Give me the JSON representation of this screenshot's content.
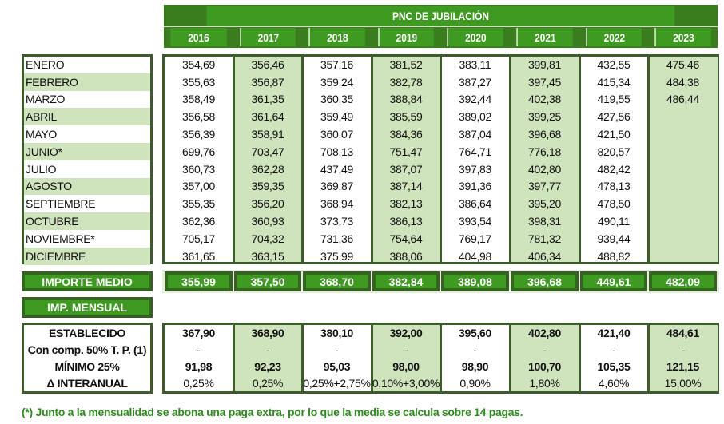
{
  "title": "PNC DE JUBILACIÓN",
  "years": [
    "2016",
    "2017",
    "2018",
    "2019",
    "2020",
    "2021",
    "2022",
    "2023"
  ],
  "months": [
    {
      "label": "ENERO",
      "values": [
        "354,69",
        "356,46",
        "357,16",
        "381,52",
        "383,11",
        "399,81",
        "432,55",
        "475,46"
      ]
    },
    {
      "label": "FEBRERO",
      "values": [
        "355,63",
        "356,87",
        "359,24",
        "382,78",
        "387,27",
        "397,45",
        "415,34",
        "484,38"
      ]
    },
    {
      "label": "MARZO",
      "values": [
        "358,49",
        "361,35",
        "360,35",
        "388,84",
        "392,44",
        "402,38",
        "419,55",
        "486,44"
      ]
    },
    {
      "label": "ABRIL",
      "values": [
        "356,58",
        "361,64",
        "359,49",
        "385,59",
        "389,02",
        "399,25",
        "427,56",
        ""
      ]
    },
    {
      "label": "MAYO",
      "values": [
        "356,39",
        "358,91",
        "360,07",
        "384,36",
        "387,04",
        "396,68",
        "421,50",
        ""
      ]
    },
    {
      "label": "JUNIO*",
      "values": [
        "699,76",
        "703,47",
        "708,13",
        "751,47",
        "764,71",
        "776,18",
        "820,57",
        ""
      ]
    },
    {
      "label": "JULIO",
      "values": [
        "360,73",
        "362,28",
        "437,49",
        "387,07",
        "397,83",
        "402,80",
        "482,42",
        ""
      ]
    },
    {
      "label": "AGOSTO",
      "values": [
        "357,00",
        "359,35",
        "369,87",
        "387,14",
        "391,36",
        "397,77",
        "478,13",
        ""
      ]
    },
    {
      "label": "SEPTIEMBRE",
      "values": [
        "355,35",
        "356,20",
        "368,94",
        "382,13",
        "386,64",
        "395,20",
        "478,50",
        ""
      ]
    },
    {
      "label": "OCTUBRE",
      "values": [
        "362,36",
        "360,93",
        "373,73",
        "386,13",
        "393,54",
        "398,31",
        "490,11",
        ""
      ]
    },
    {
      "label": "NOVIEMBRE*",
      "values": [
        "705,17",
        "704,32",
        "731,36",
        "754,64",
        "769,17",
        "781,32",
        "939,44",
        ""
      ]
    },
    {
      "label": "DICIEMBRE",
      "values": [
        "361,65",
        "363,15",
        "375,99",
        "388,06",
        "404,98",
        "406,34",
        "488,82",
        ""
      ]
    }
  ],
  "importe_medio": {
    "label": "IMPORTE MEDIO",
    "values": [
      "355,99",
      "357,50",
      "368,70",
      "382,84",
      "389,08",
      "396,68",
      "449,61",
      "482,09"
    ]
  },
  "imp_mensual": {
    "label": "IMP. MENSUAL"
  },
  "mensual_rows": [
    {
      "label": "ESTABLECIDO",
      "bold": true,
      "values": [
        "367,90",
        "368,90",
        "380,10",
        "392,00",
        "395,60",
        "402,80",
        "421,40",
        "484,61"
      ]
    },
    {
      "label": "Con comp. 50% T. P. (1)",
      "bold": true,
      "values": [
        "-",
        "-",
        "-",
        "-",
        "-",
        "-",
        "-",
        "-"
      ]
    },
    {
      "label": "MÍNIMO 25%",
      "bold": true,
      "values": [
        "91,98",
        "92,23",
        "95,03",
        "98,00",
        "98,90",
        "100,70",
        "105,35",
        "121,15"
      ]
    },
    {
      "label": "Δ INTERANUAL",
      "bold": true,
      "values": [
        "0,25%",
        "0,25%",
        "0,25%+2,75%",
        "0,10%+3,00%",
        "0,90%",
        "1,80%",
        "4,60%",
        "15,00%"
      ]
    }
  ],
  "footnote": "(*) Junto a la mensualidad se abona una paga extra, por lo que la media se calcula sobre 14 pagas.",
  "colors": {
    "header_green": "#3f9a22",
    "light_green": "#cfe4bd",
    "border": "#3d5c2c",
    "footnote": "#2e8b1e"
  }
}
